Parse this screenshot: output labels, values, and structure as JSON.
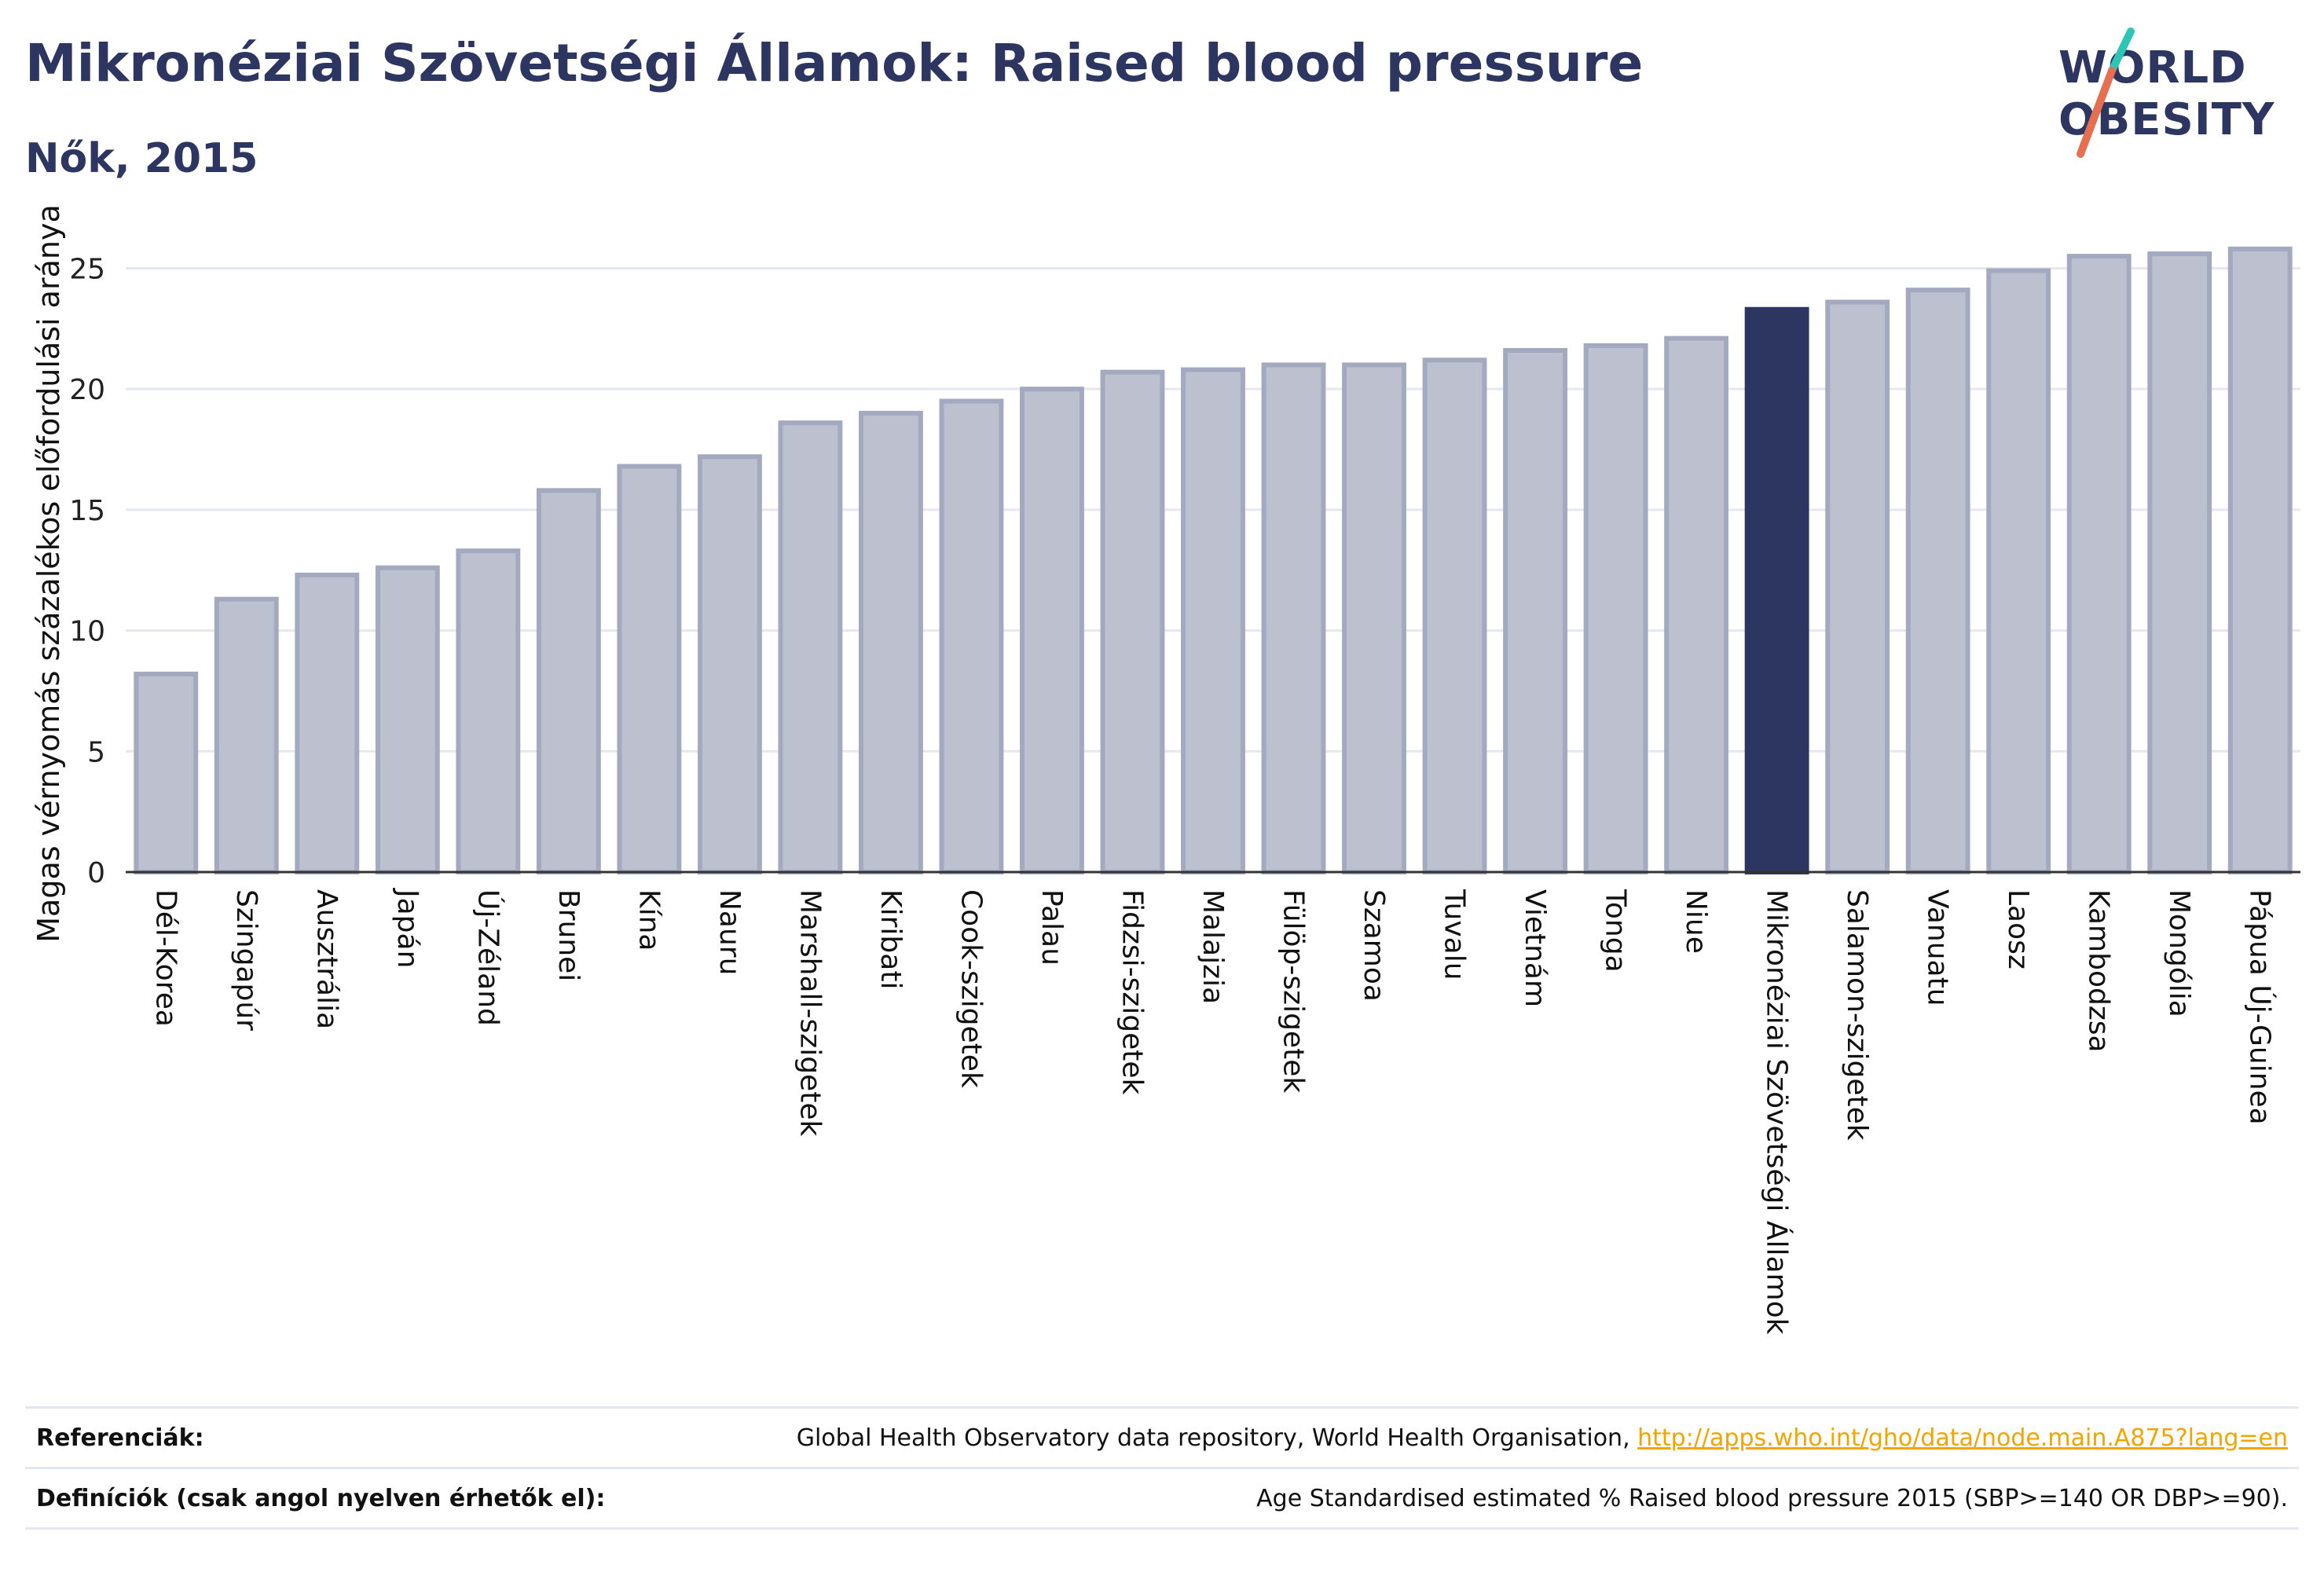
{
  "header": {
    "title": "Mikronéziai Szövetségi Államok: Raised blood pressure",
    "subtitle": "Nők, 2015"
  },
  "logo": {
    "line1": "WORLD",
    "line2": "OBESITY",
    "text_color": "#2d3561",
    "slash_colors": [
      "#2ec4b6",
      "#e76f51"
    ]
  },
  "chart_data": {
    "type": "bar",
    "ylabel": "Magas vérnyomás százalékos előfordulási aránya",
    "xlabel": "",
    "ylim": [
      0,
      27
    ],
    "yticks": [
      0,
      5,
      10,
      15,
      20,
      25
    ],
    "grid": true,
    "highlight_category": "Mikronéziai Szövetségi Államok",
    "colors": {
      "bar": "#2d3561",
      "bar_muted_fill": "#bcc0cf",
      "bar_muted_edge": "#a3a9bf",
      "grid": "#e6e8f0"
    },
    "categories": [
      "Dél-Korea",
      "Szingapúr",
      "Ausztrália",
      "Japán",
      "Új-Zéland",
      "Brunei",
      "Kína",
      "Nauru",
      "Marshall-szigetek",
      "Kiribati",
      "Cook-szigetek",
      "Palau",
      "Fidzsi-szigetek",
      "Malajzia",
      "Fülöp-szigetek",
      "Szamoa",
      "Tuvalu",
      "Vietnám",
      "Tonga",
      "Niue",
      "Mikronéziai Szövetségi Államok",
      "Salamon-szigetek",
      "Vanuatu",
      "Laosz",
      "Kambodzsa",
      "Mongólia",
      "Pápua Új-Guinea"
    ],
    "values": [
      8.2,
      11.3,
      12.3,
      12.6,
      13.3,
      15.8,
      16.8,
      17.2,
      18.6,
      19.0,
      19.5,
      20.0,
      20.7,
      20.8,
      21.0,
      21.0,
      21.2,
      21.6,
      21.8,
      22.1,
      23.3,
      23.6,
      24.1,
      24.9,
      25.5,
      25.6,
      25.8
    ]
  },
  "footer": {
    "references_label": "Referenciák:",
    "references_text": "Global Health Observatory data repository, World Health Organisation, ",
    "references_link": "http://apps.who.int/gho/data/node.main.A875?lang=en",
    "definitions_label": "Definíciók (csak angol nyelven érhetők el):",
    "definitions_text": "Age Standardised estimated % Raised blood pressure 2015 (SBP>=140 OR DBP>=90)."
  }
}
